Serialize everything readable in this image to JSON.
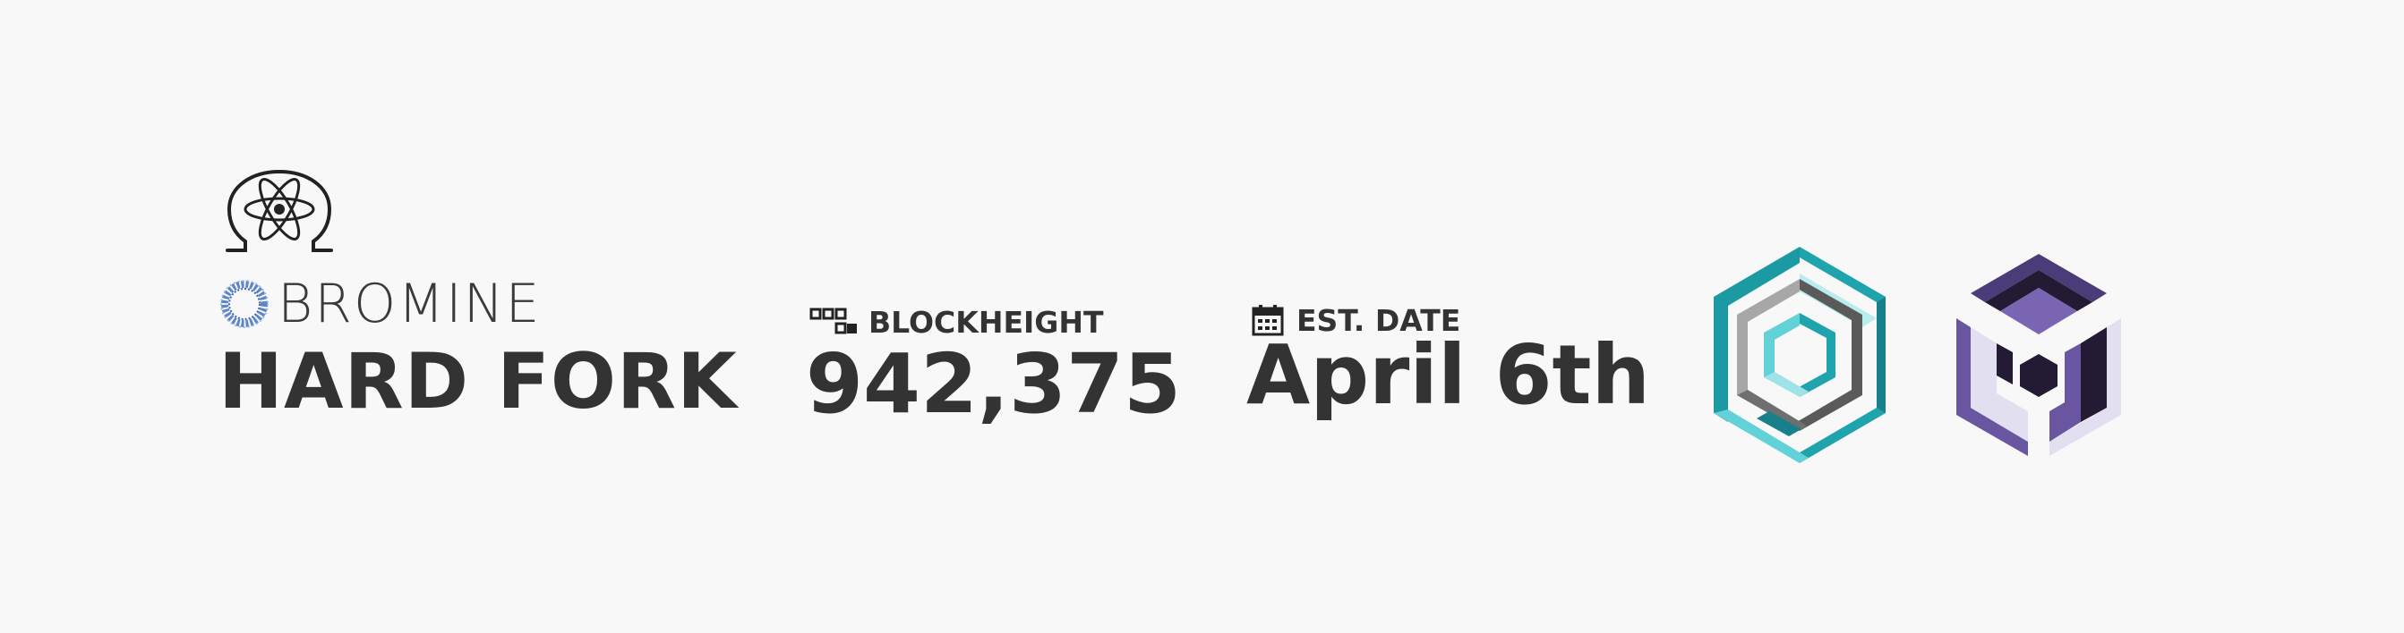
{
  "brand": {
    "omega_logo_icon": "omega-atom-icon",
    "ring_icon": "laurel-ring-icon",
    "wordmark": "BROMINE"
  },
  "headline": "HARD FORK",
  "blockheight": {
    "icon": "blocks-icon",
    "label": "BLOCKHEIGHT",
    "value": "942,375"
  },
  "est_date": {
    "icon": "calendar-icon",
    "label": "EST. DATE",
    "value": "April 6th"
  },
  "logos": {
    "teal_logo_icon": "teal-hexagon-knot-icon",
    "purple_logo_icon": "purple-hexagon-cube-icon"
  },
  "colors": {
    "background": "#f8f8f8",
    "text": "#333333",
    "teal": "#1fa3ad",
    "teal_light": "#62d2d8",
    "grey": "#5a5a5a",
    "purple": "#6a56a0",
    "purple_dark": "#231a33",
    "lavender": "#e2dff0"
  }
}
